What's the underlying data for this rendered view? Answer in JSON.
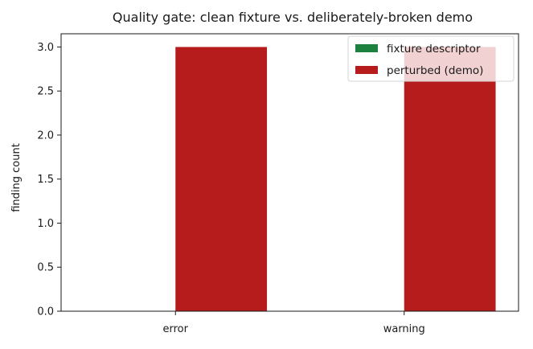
{
  "chart_data": {
    "type": "bar",
    "title": "Quality gate: clean fixture vs. deliberately-broken demo",
    "xlabel": "",
    "ylabel": "finding count",
    "categories": [
      "error",
      "warning"
    ],
    "series": [
      {
        "name": "fixture descriptor",
        "values": [
          0,
          0
        ],
        "color": "#1b813e"
      },
      {
        "name": "perturbed (demo)",
        "values": [
          3,
          3
        ],
        "color": "#b71c1c"
      }
    ],
    "ylim": [
      0,
      3.15
    ],
    "yticks": [
      "0.0",
      "0.5",
      "1.0",
      "1.5",
      "2.0",
      "2.5",
      "3.0"
    ],
    "grid": false,
    "legend": "top-right"
  }
}
